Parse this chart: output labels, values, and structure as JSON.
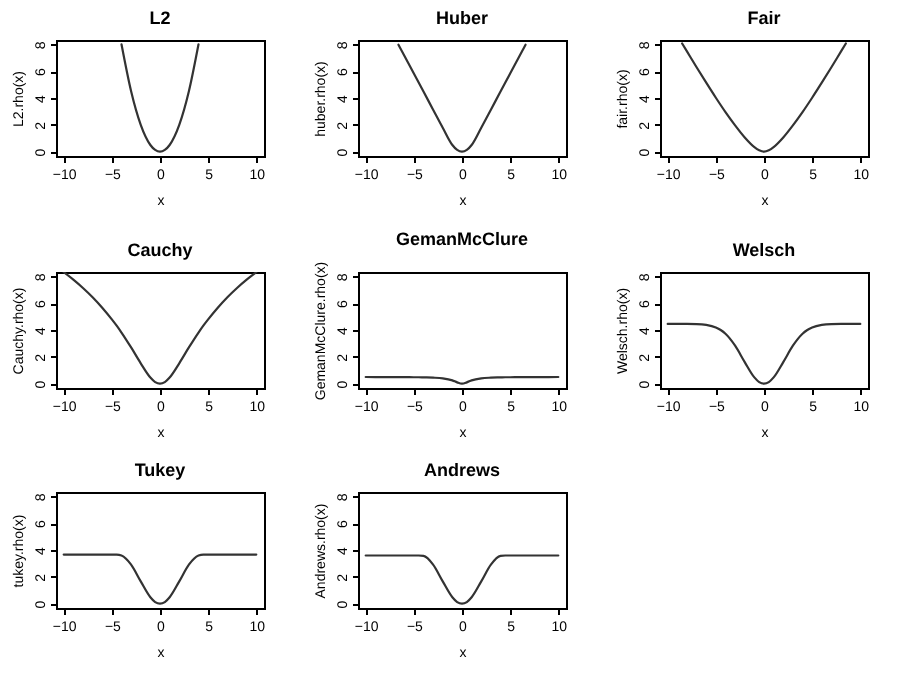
{
  "chart_data": [
    {
      "type": "line",
      "title": "L2",
      "xlabel": "x",
      "ylabel": "L2.rho(x)",
      "x": [
        -4,
        -3,
        -2,
        -1,
        -0.5,
        0,
        0.5,
        1,
        2,
        3,
        4
      ],
      "series": [
        {
          "color": "#333333",
          "values": [
            8,
            4.5,
            2,
            0.5,
            0.13,
            0,
            0.13,
            0.5,
            2,
            4.5,
            8
          ]
        }
      ],
      "xlim": [
        -10.8,
        10.8
      ],
      "ylim": [
        -0.32,
        8.32
      ],
      "xticks": [
        -10,
        -5,
        0,
        5,
        10
      ],
      "yticks": [
        0,
        2,
        4,
        6,
        8
      ]
    },
    {
      "type": "line",
      "title": "Huber",
      "xlabel": "x",
      "ylabel": "huber.rho(x)",
      "x": [
        -6.6,
        -6,
        -5,
        -4,
        -3,
        -2,
        -1,
        -0.5,
        0,
        0.5,
        1,
        2,
        3,
        4,
        5,
        6,
        6.6
      ],
      "series": [
        {
          "color": "#333333",
          "values": [
            7.97,
            7.17,
            5.82,
            4.48,
            3.13,
            1.79,
            0.5,
            0.13,
            0,
            0.13,
            0.5,
            1.79,
            3.13,
            4.48,
            5.82,
            7.17,
            7.97
          ]
        }
      ],
      "xlim": [
        -10.8,
        10.8
      ],
      "ylim": [
        -0.32,
        8.32
      ],
      "xticks": [
        -10,
        -5,
        0,
        5,
        10
      ],
      "yticks": [
        0,
        2,
        4,
        6,
        8
      ]
    },
    {
      "type": "line",
      "title": "Fair",
      "xlabel": "x",
      "ylabel": "fair.rho(x)",
      "x": [
        -8.5,
        -8,
        -7,
        -6,
        -5,
        -4,
        -3,
        -2,
        -1,
        -0.5,
        0,
        0.5,
        1,
        2,
        3,
        4,
        5,
        6,
        7,
        8,
        8.5
      ],
      "series": [
        {
          "color": "#333333",
          "values": [
            8.06,
            7.47,
            6.29,
            5.14,
            4.02,
            2.95,
            1.96,
            1.06,
            0.34,
            0.1,
            0,
            0.1,
            0.34,
            1.06,
            1.96,
            2.95,
            4.02,
            5.14,
            6.29,
            7.47,
            8.06
          ]
        }
      ],
      "xlim": [
        -10.8,
        10.8
      ],
      "ylim": [
        -0.32,
        8.32
      ],
      "xticks": [
        -10,
        -5,
        0,
        5,
        10
      ],
      "yticks": [
        0,
        2,
        4,
        6,
        8
      ]
    },
    {
      "type": "line",
      "title": "Cauchy",
      "xlabel": "x",
      "ylabel": "Cauchy.rho(x)",
      "x": [
        -10,
        -9,
        -8,
        -7,
        -6,
        -5,
        -4.5,
        -4,
        -3,
        -2,
        -1,
        -0.5,
        0,
        0.5,
        1,
        2,
        3,
        4,
        4.5,
        5,
        6,
        7,
        8,
        9,
        10
      ],
      "series": [
        {
          "color": "#333333",
          "values": [
            8.31,
            7.75,
            7.13,
            6.44,
            5.66,
            4.79,
            4.32,
            3.81,
            2.7,
            1.52,
            0.46,
            0.12,
            0,
            0.12,
            0.46,
            1.52,
            2.7,
            3.81,
            4.32,
            4.79,
            5.66,
            6.44,
            7.13,
            7.75,
            8.31
          ]
        }
      ],
      "xlim": [
        -10.8,
        10.8
      ],
      "ylim": [
        -0.32,
        8.32
      ],
      "xticks": [
        -10,
        -5,
        0,
        5,
        10
      ],
      "yticks": [
        0,
        2,
        4,
        6,
        8
      ]
    },
    {
      "type": "line",
      "title": "GemanMcClure",
      "xlabel": "x",
      "ylabel": "GemanMcClure.rho(x)",
      "x": [
        -10,
        -9,
        -8,
        -7,
        -6,
        -5,
        -4.5,
        -4,
        -3,
        -2,
        -1,
        -0.5,
        0,
        0.5,
        1,
        2,
        3,
        4,
        4.5,
        5,
        6,
        7,
        8,
        9,
        10
      ],
      "series": [
        {
          "color": "#333333",
          "values": [
            0.5,
            0.49,
            0.49,
            0.49,
            0.49,
            0.48,
            0.48,
            0.47,
            0.45,
            0.4,
            0.25,
            0.1,
            0,
            0.1,
            0.25,
            0.4,
            0.45,
            0.47,
            0.48,
            0.48,
            0.49,
            0.49,
            0.49,
            0.49,
            0.5
          ]
        }
      ],
      "xlim": [
        -10.8,
        10.8
      ],
      "ylim": [
        -0.32,
        8.32
      ],
      "xticks": [
        -10,
        -5,
        0,
        5,
        10
      ],
      "yticks": [
        0,
        2,
        4,
        6,
        8
      ]
    },
    {
      "type": "line",
      "title": "Welsch",
      "xlabel": "x",
      "ylabel": "Welsch.rho(x)",
      "x": [
        -10,
        -9,
        -8,
        -7,
        -6,
        -5,
        -4.5,
        -4,
        -3,
        -2,
        -1,
        -0.5,
        0,
        0.5,
        1,
        2,
        3,
        4,
        4.5,
        5,
        6,
        7,
        8,
        9,
        10
      ],
      "series": [
        {
          "color": "#333333",
          "values": [
            4.45,
            4.45,
            4.45,
            4.44,
            4.38,
            4.19,
            4.0,
            3.72,
            2.83,
            1.61,
            0.47,
            0.12,
            0,
            0.12,
            0.47,
            1.61,
            2.83,
            3.72,
            4.0,
            4.19,
            4.38,
            4.44,
            4.45,
            4.45,
            4.45
          ]
        }
      ],
      "xlim": [
        -10.8,
        10.8
      ],
      "ylim": [
        -0.32,
        8.32
      ],
      "xticks": [
        -10,
        -5,
        0,
        5,
        10
      ],
      "yticks": [
        0,
        2,
        4,
        6,
        8
      ]
    },
    {
      "type": "line",
      "title": "Tukey",
      "xlabel": "x",
      "ylabel": "tukey.rho(x)",
      "x": [
        -10,
        -9,
        -8,
        -7,
        -6,
        -5,
        -4.5,
        -4,
        -3,
        -2,
        -1,
        -0.5,
        0,
        0.5,
        1,
        2,
        3,
        4,
        4.5,
        5,
        6,
        7,
        8,
        9,
        10
      ],
      "series": [
        {
          "color": "#333333",
          "values": [
            3.66,
            3.66,
            3.66,
            3.66,
            3.66,
            3.66,
            3.66,
            3.59,
            2.91,
            1.66,
            0.48,
            0.12,
            0,
            0.12,
            0.48,
            1.66,
            2.91,
            3.59,
            3.66,
            3.66,
            3.66,
            3.66,
            3.66,
            3.66,
            3.66
          ]
        }
      ],
      "xlim": [
        -10.8,
        10.8
      ],
      "ylim": [
        -0.32,
        8.32
      ],
      "xticks": [
        -10,
        -5,
        0,
        5,
        10
      ],
      "yticks": [
        0,
        2,
        4,
        6,
        8
      ]
    },
    {
      "type": "line",
      "title": "Andrews",
      "xlabel": "x",
      "ylabel": "Andrews.rho(x)",
      "x": [
        -10,
        -9,
        -8,
        -7,
        -6,
        -5,
        -4.5,
        -4,
        -3,
        -2,
        -1,
        -0.5,
        0,
        0.5,
        1,
        2,
        3,
        4,
        4.5,
        5,
        6,
        7,
        8,
        9,
        10
      ],
      "series": [
        {
          "color": "#333333",
          "values": [
            3.59,
            3.59,
            3.59,
            3.59,
            3.59,
            3.59,
            3.59,
            3.56,
            2.91,
            1.66,
            0.48,
            0.12,
            0,
            0.12,
            0.48,
            1.66,
            2.91,
            3.56,
            3.59,
            3.59,
            3.59,
            3.59,
            3.59,
            3.59,
            3.59
          ]
        }
      ],
      "xlim": [
        -10.8,
        10.8
      ],
      "ylim": [
        -0.32,
        8.32
      ],
      "xticks": [
        -10,
        -5,
        0,
        5,
        10
      ],
      "yticks": [
        0,
        2,
        4,
        6,
        8
      ]
    }
  ]
}
